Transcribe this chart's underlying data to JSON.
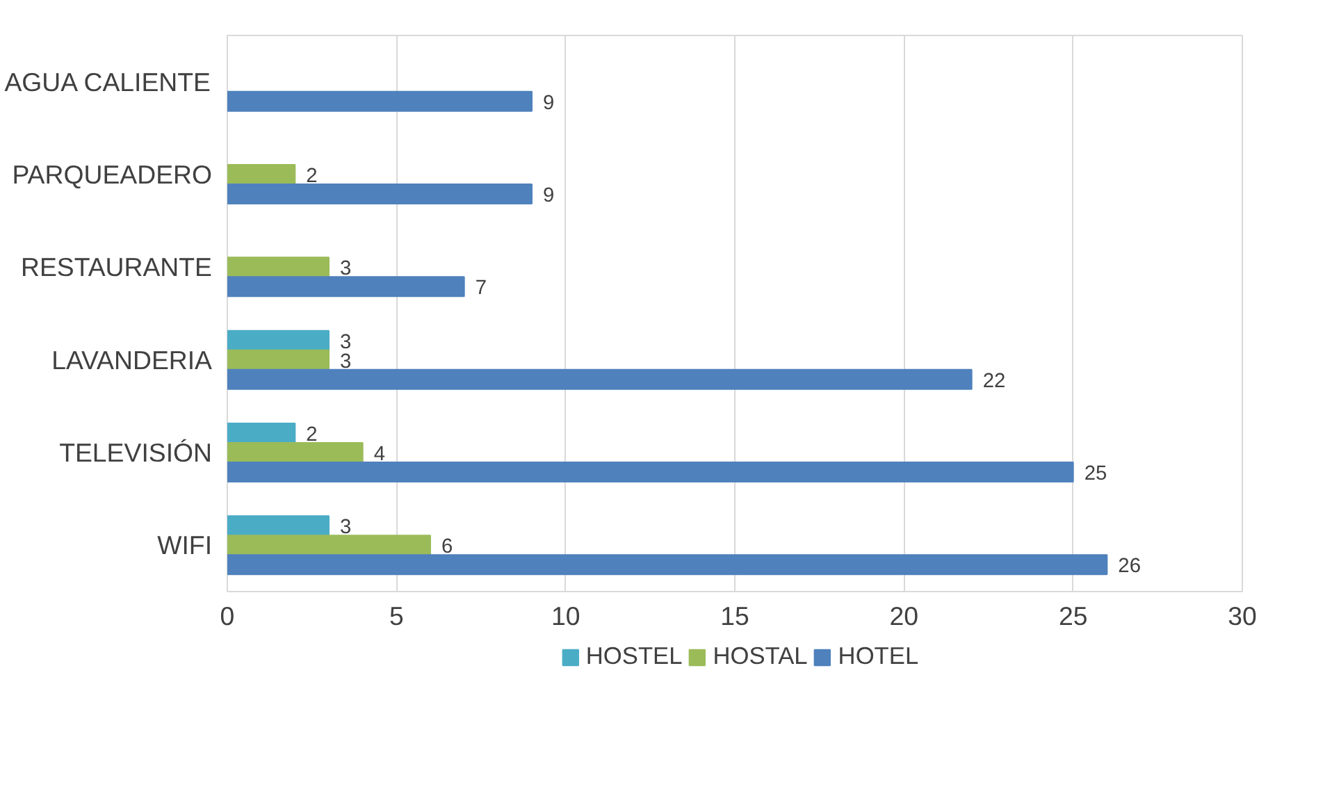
{
  "chart_data": {
    "type": "bar",
    "orientation": "horizontal",
    "categories": [
      "AGUA CALIENTE",
      "PARQUEADERO",
      "RESTAURANTE",
      "LAVANDERIA",
      "TELEVISIÓN",
      "WIFI"
    ],
    "series": [
      {
        "name": "HOSTEL",
        "color": "#4bacc6",
        "values": [
          null,
          null,
          null,
          3,
          2,
          3
        ]
      },
      {
        "name": "HOSTAL",
        "color": "#9bbb59",
        "values": [
          null,
          2,
          3,
          3,
          4,
          6
        ]
      },
      {
        "name": "HOTEL",
        "color": "#4f81bd",
        "values": [
          9,
          9,
          7,
          22,
          25,
          26
        ]
      }
    ],
    "xlim": [
      0,
      30
    ],
    "xticks": [
      0,
      5,
      10,
      15,
      20,
      25,
      30
    ],
    "grid": "x",
    "legend": "bottom",
    "data_labels": true
  }
}
